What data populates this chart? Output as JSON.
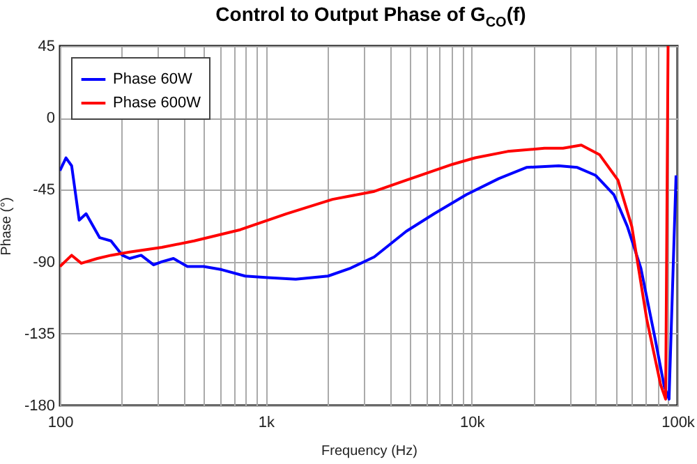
{
  "chart_data": {
    "type": "line",
    "title": "Control to Output Phase of G$_{CO}$(f)",
    "xlabel": "Frequency (Hz)",
    "ylabel": "Phase (°)",
    "log": "x",
    "grid": true,
    "legend": "top left",
    "xlim": [
      100,
      100000
    ],
    "xticks": [
      {
        "value": 100,
        "label": "100"
      },
      {
        "value": 200,
        "label": null
      },
      {
        "value": 300,
        "label": null
      },
      {
        "value": 400,
        "label": null
      },
      {
        "value": 500,
        "label": null
      },
      {
        "value": 600,
        "label": null
      },
      {
        "value": 700,
        "label": null
      },
      {
        "value": 800,
        "label": null
      },
      {
        "value": 900,
        "label": null
      },
      {
        "value": 1000,
        "label": "1k"
      },
      {
        "value": 2000,
        "label": null
      },
      {
        "value": 3000,
        "label": null
      },
      {
        "value": 4000,
        "label": null
      },
      {
        "value": 5000,
        "label": null
      },
      {
        "value": 6000,
        "label": null
      },
      {
        "value": 7000,
        "label": null
      },
      {
        "value": 8000,
        "label": null
      },
      {
        "value": 9000,
        "label": null
      },
      {
        "value": 10000,
        "label": "10k"
      },
      {
        "value": 20000,
        "label": null
      },
      {
        "value": 30000,
        "label": null
      },
      {
        "value": 40000,
        "label": null
      },
      {
        "value": 50000,
        "label": null
      },
      {
        "value": 60000,
        "label": null
      },
      {
        "value": 70000,
        "label": null
      },
      {
        "value": 80000,
        "label": null
      },
      {
        "value": 90000,
        "label": null
      },
      {
        "value": 100000,
        "label": "100k"
      }
    ],
    "ylim": [
      -180,
      45
    ],
    "yticks": [
      -180,
      -135,
      -90,
      -45,
      0,
      45
    ],
    "series": [
      {
        "name": "Phase 60W",
        "color": "#0000ff",
        "x": [
          100,
          107,
          114,
          124,
          134,
          156,
          177,
          201,
          218,
          248,
          285,
          313,
          356,
          416,
          499,
          611,
          794,
          1025,
          1398,
          2006,
          2585,
          3365,
          4813,
          6577,
          9440,
          13540,
          18460,
          26500,
          32590,
          40060,
          49070,
          57100,
          66400,
          77800,
          86200,
          91000,
          98400
        ],
        "values": [
          -33,
          -25,
          -30,
          -64,
          -60,
          -75,
          -77,
          -86,
          -88,
          -86,
          -92,
          -90,
          -88,
          -93,
          -93,
          -95,
          -99,
          -100,
          -101,
          -99,
          -94,
          -87,
          -71,
          -60,
          -48,
          -38,
          -31,
          -30,
          -31,
          -36,
          -48,
          -68,
          -94,
          -138,
          -168,
          -176,
          -36
        ]
      },
      {
        "name": "Phase 600W",
        "color": "#ff0000",
        "x": [
          100,
          114,
          127,
          152,
          177,
          218,
          313,
          449,
          752,
          1260,
          2110,
          3365,
          4813,
          8100,
          10400,
          14960,
          22560,
          27800,
          34100,
          41800,
          51400,
          60000,
          70900,
          82800,
          87600,
          90000
        ],
        "values": [
          -93,
          -86,
          -91,
          -88,
          -86,
          -84,
          -81,
          -77,
          -70,
          -60,
          -51,
          -46,
          -39,
          -29,
          -25,
          -21,
          -19,
          -19,
          -17,
          -23,
          -39,
          -68,
          -126,
          -167,
          -176,
          45
        ]
      }
    ]
  }
}
